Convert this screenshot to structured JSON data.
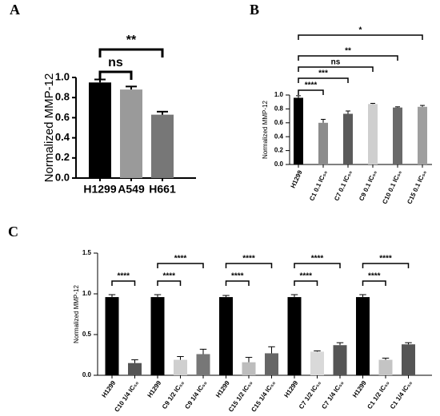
{
  "chart_data": [
    {
      "type": "bar",
      "panel": "A",
      "ylabel": "Normalized MMP-12",
      "categories": [
        "H1299",
        "A549",
        "H661"
      ],
      "values": [
        0.95,
        0.88,
        0.63
      ],
      "errors": [
        0.03,
        0.03,
        0.03
      ],
      "colors": [
        "#000000",
        "#9a9a9a",
        "#777777"
      ],
      "ylim": [
        0,
        1.0
      ],
      "yticks": [
        {
          "value": 0,
          "label": "0.0"
        },
        0.2,
        0.4,
        0.6,
        0.8,
        {
          "value": 1.0,
          "label": "1.0"
        }
      ],
      "brackets": [
        {
          "text": "ns",
          "from": 0,
          "to": 1
        },
        {
          "text": "**",
          "from": 0,
          "to": 2
        }
      ]
    },
    {
      "type": "bar",
      "panel": "B",
      "ylabel": "Normalized MMP-12",
      "categories": [
        "H1299",
        "C1 0.1 IC₅₀",
        "C7 0.1 IC₅₀",
        "C9 0.1 IC₅₀",
        "C10 0.1 IC₅₀",
        "C15 0.1 IC₅₀"
      ],
      "values": [
        0.96,
        0.6,
        0.73,
        0.87,
        0.82,
        0.83
      ],
      "errors": [
        0.03,
        0.05,
        0.04,
        0.01,
        0.01,
        0.02
      ],
      "colors": [
        "#000000",
        "#8c8c8c",
        "#5a5a5a",
        "#cfcfcf",
        "#6a6a6a",
        "#9f9f9f"
      ],
      "ylim": [
        0,
        1.0
      ],
      "yticks": [
        {
          "value": 0,
          "label": "0.0"
        },
        0.2,
        0.4,
        0.6,
        0.8,
        {
          "value": 1.0,
          "label": "1.0"
        }
      ],
      "brackets": [
        {
          "text": "****",
          "from": 0,
          "to": 1
        },
        {
          "text": "***",
          "from": 0,
          "to": 2
        },
        {
          "text": "ns",
          "from": 0,
          "to": 3
        },
        {
          "text": "**",
          "from": 0,
          "to": 4
        },
        {
          "text": "*",
          "from": 0,
          "to": 5
        }
      ]
    },
    {
      "type": "bar",
      "panel": "C",
      "ylabel": "Normalized MMP-12",
      "categories": [
        "H1299",
        "C10 1/4 IC₅₀",
        "H1299",
        "C9 1/2 IC₅₀",
        "C9 1/4 IC₅₀",
        "H1299",
        "C15 1/2 IC₅₀",
        "C15 1/4 IC₅₀",
        "H1299",
        "C7 1/2 IC₅₀",
        "C7 1/4 IC₅₀",
        "H1299",
        "C1 1/2 IC₅₀",
        "C1 1/4 IC₅₀"
      ],
      "values": [
        0.96,
        0.15,
        0.96,
        0.19,
        0.26,
        0.96,
        0.16,
        0.27,
        0.96,
        0.29,
        0.37,
        0.96,
        0.19,
        0.38
      ],
      "errors": [
        0.03,
        0.04,
        0.03,
        0.04,
        0.06,
        0.02,
        0.06,
        0.08,
        0.03,
        0.01,
        0.03,
        0.03,
        0.02,
        0.02
      ],
      "colors": [
        "#000000",
        "#555555",
        "#000000",
        "#cfcfcf",
        "#777777",
        "#000000",
        "#bdbdbd",
        "#666666",
        "#000000",
        "#d9d9d9",
        "#555555",
        "#000000",
        "#c4c4c4",
        "#555555"
      ],
      "ylim": [
        0,
        1.5
      ],
      "yticks": [
        {
          "value": 0,
          "label": "0.0"
        },
        0.5,
        {
          "value": 1.0,
          "label": "1.0"
        },
        1.5
      ],
      "brackets": [
        {
          "text": "****",
          "from": 0,
          "to": 1
        },
        {
          "text": "****",
          "from": 2,
          "to": 3
        },
        {
          "text": "****",
          "from": 2,
          "to": 4
        },
        {
          "text": "****",
          "from": 5,
          "to": 6
        },
        {
          "text": "****",
          "from": 5,
          "to": 7
        },
        {
          "text": "****",
          "from": 8,
          "to": 9
        },
        {
          "text": "****",
          "from": 8,
          "to": 10
        },
        {
          "text": "****",
          "from": 11,
          "to": 12
        },
        {
          "text": "****",
          "from": 11,
          "to": 13
        }
      ]
    }
  ]
}
